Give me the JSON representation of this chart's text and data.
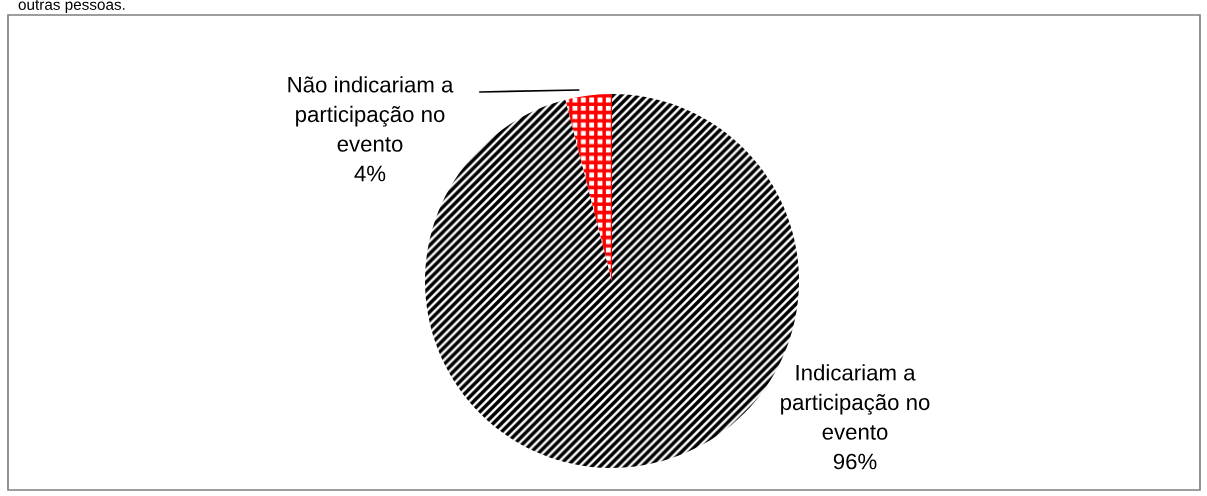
{
  "chart_data": {
    "type": "pie",
    "categories": [
      "Indicariam a\nparticipação no\nevento",
      "Não indicariam a\nparticipação no\nevento"
    ],
    "values": [
      96,
      4
    ],
    "value_labels": [
      "96%",
      "4%"
    ],
    "colors": [
      "#000000",
      "#ff0000"
    ],
    "annotations": [
      "outras pessoas."
    ]
  }
}
